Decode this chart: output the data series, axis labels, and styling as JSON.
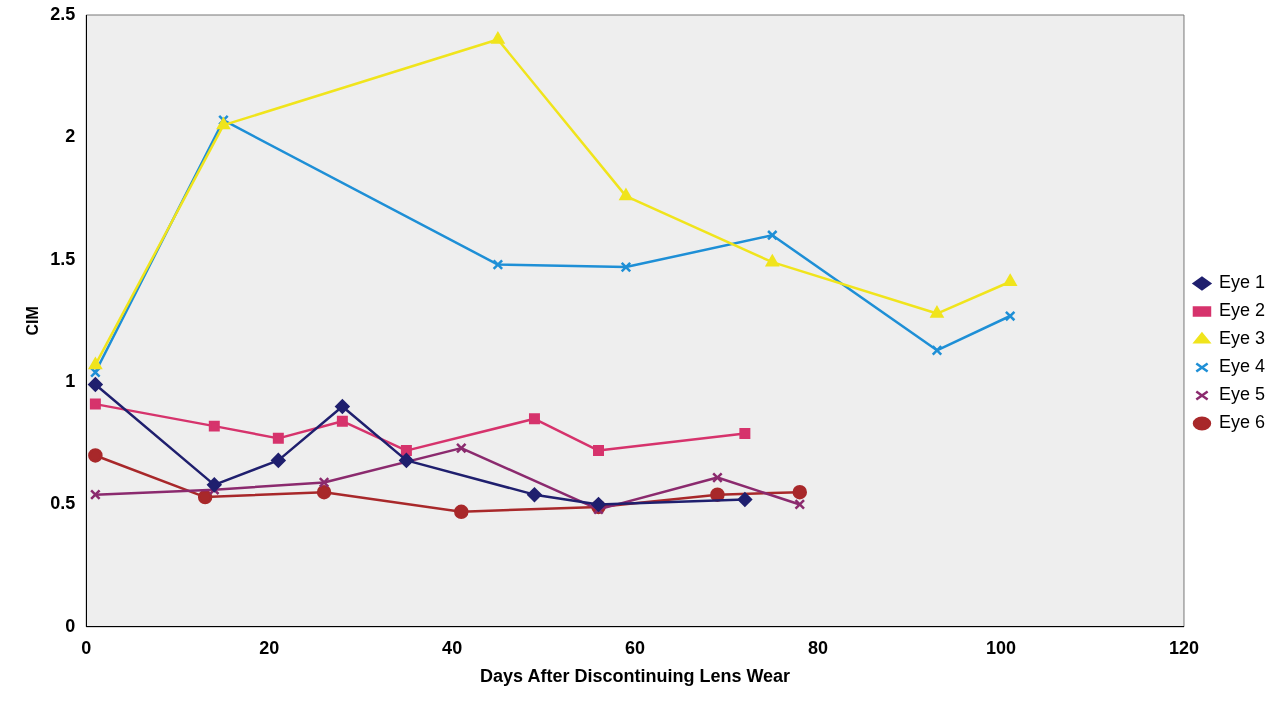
{
  "chart_data": {
    "type": "line",
    "xlabel": "Days After Discontinuing Lens Wear",
    "ylabel": "CIM",
    "xlim": [
      0,
      120
    ],
    "xticks": [
      0,
      20,
      40,
      60,
      80,
      100,
      120
    ],
    "ylim": [
      0,
      2.5
    ],
    "yticks": [
      0,
      0.5,
      1,
      1.5,
      2,
      2.5
    ],
    "grid": false,
    "legend": "right",
    "line_style": "solid",
    "series": [
      {
        "name": "Eye 1",
        "color": "#1f1f6e",
        "marker": "diamond",
        "x": [
          1,
          14,
          21,
          28,
          35,
          49,
          56,
          72
        ],
        "values": [
          0.99,
          0.58,
          0.68,
          0.9,
          0.68,
          0.54,
          0.5,
          0.52
        ]
      },
      {
        "name": "Eye 2",
        "color": "#d6336c",
        "marker": "square",
        "x": [
          1,
          14,
          21,
          28,
          35,
          49,
          56,
          72
        ],
        "values": [
          0.91,
          0.82,
          0.77,
          0.84,
          0.72,
          0.85,
          0.72,
          0.79
        ]
      },
      {
        "name": "Eye 3",
        "color": "#f0e41c",
        "marker": "triangle",
        "x": [
          1,
          15,
          45,
          59,
          75,
          93,
          101
        ],
        "values": [
          1.07,
          2.05,
          2.4,
          1.76,
          1.49,
          1.28,
          1.41
        ]
      },
      {
        "name": "Eye 4",
        "color": "#1e8fd6",
        "marker": "cross",
        "x": [
          1,
          15,
          45,
          59,
          75,
          93,
          101
        ],
        "values": [
          1.04,
          2.07,
          1.48,
          1.47,
          1.6,
          1.13,
          1.27
        ]
      },
      {
        "name": "Eye 5",
        "color": "#8b2a6e",
        "marker": "cross",
        "x": [
          1,
          14,
          26,
          41,
          56,
          69,
          78
        ],
        "values": [
          0.54,
          0.56,
          0.59,
          0.73,
          0.48,
          0.61,
          0.5
        ]
      },
      {
        "name": "Eye 6",
        "color": "#a8282a",
        "marker": "circle",
        "x": [
          1,
          13,
          26,
          41,
          56,
          69,
          78
        ],
        "values": [
          0.7,
          0.53,
          0.55,
          0.47,
          0.49,
          0.54,
          0.55
        ]
      }
    ]
  }
}
